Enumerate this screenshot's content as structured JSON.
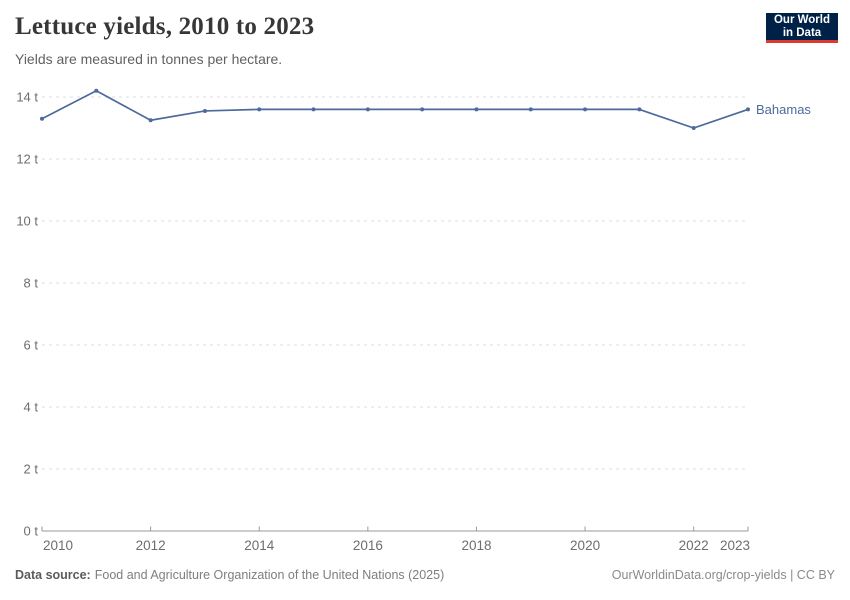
{
  "header": {
    "title": "Lettuce yields, 2010 to 2023",
    "subtitle": "Yields are measured in tonnes per hectare."
  },
  "logo": {
    "line1": "Our World",
    "line2": "in Data",
    "bg_color": "#002147",
    "accent_color": "#dc3a2f"
  },
  "chart_data": {
    "type": "line",
    "title": "Lettuce yields, 2010 to 2023",
    "ylabel": "tonnes per hectare",
    "xlabel": "",
    "x": [
      2010,
      2011,
      2012,
      2013,
      2014,
      2015,
      2016,
      2017,
      2018,
      2019,
      2020,
      2021,
      2022,
      2023
    ],
    "series": [
      {
        "name": "Bahamas",
        "color": "#4c6a9c",
        "values": [
          13.3,
          14.2,
          13.25,
          13.55,
          13.6,
          13.6,
          13.6,
          13.6,
          13.6,
          13.6,
          13.6,
          13.6,
          13.0,
          13.6
        ]
      }
    ],
    "ylim": [
      0,
      14
    ],
    "yticks": [
      {
        "value": 0,
        "label": "0 t"
      },
      {
        "value": 2,
        "label": "2 t"
      },
      {
        "value": 4,
        "label": "4 t"
      },
      {
        "value": 6,
        "label": "6 t"
      },
      {
        "value": 8,
        "label": "8 t"
      },
      {
        "value": 10,
        "label": "10 t"
      },
      {
        "value": 12,
        "label": "12 t"
      },
      {
        "value": 14,
        "label": "14 t"
      }
    ],
    "xticks": [
      2010,
      2012,
      2014,
      2016,
      2018,
      2020,
      2022,
      2023
    ],
    "grid": "horizontal-dashed",
    "legend_position": "end-of-line",
    "palette": {
      "grid": "#dcdcdc",
      "axis": "#9a9a9a",
      "tick_text": "#6e6e6e"
    }
  },
  "footer": {
    "source_label": "Data source:",
    "source_text": "Food and Agriculture Organization of the United Nations (2025)",
    "credit": "OurWorldinData.org/crop-yields | CC BY"
  }
}
